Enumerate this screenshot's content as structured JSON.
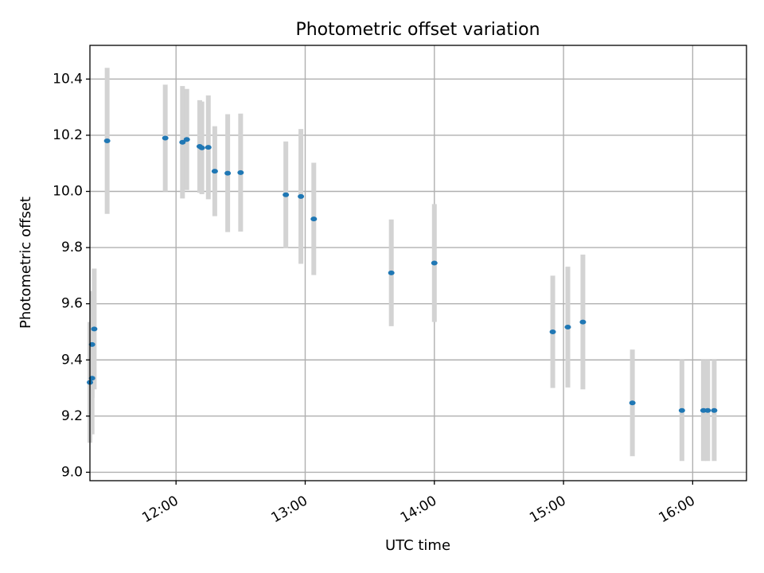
{
  "chart_data": {
    "type": "scatter",
    "title": "Photometric offset variation",
    "xlabel": "UTC time",
    "ylabel": "Photometric offset",
    "x_ticks": [
      "12:00",
      "13:00",
      "14:00",
      "15:00",
      "16:00"
    ],
    "y_ticks": [
      "9.0",
      "9.2",
      "9.4",
      "9.6",
      "9.8",
      "10.0",
      "10.2",
      "10.4"
    ],
    "xlim": [
      "11:20",
      "16:25"
    ],
    "ylim": [
      8.97,
      10.52
    ],
    "grid": true,
    "colors": {
      "point": "#1f77b4",
      "errorbar": "#d3d3d3"
    },
    "points": [
      {
        "x": "11:20",
        "y": 9.32,
        "yerr": 0.215
      },
      {
        "x": "11:21",
        "y": 9.335,
        "yerr": 0.2
      },
      {
        "x": "11:21",
        "y": 9.455,
        "yerr": 0.19
      },
      {
        "x": "11:22",
        "y": 9.51,
        "yerr": 0.215
      },
      {
        "x": "11:28",
        "y": 10.18,
        "yerr": 0.26
      },
      {
        "x": "11:55",
        "y": 10.19,
        "yerr": 0.19
      },
      {
        "x": "12:03",
        "y": 10.175,
        "yerr": 0.2
      },
      {
        "x": "12:05",
        "y": 10.185,
        "yerr": 0.18
      },
      {
        "x": "12:11",
        "y": 10.16,
        "yerr": 0.165
      },
      {
        "x": "12:12",
        "y": 10.155,
        "yerr": 0.165
      },
      {
        "x": "12:15",
        "y": 10.157,
        "yerr": 0.185
      },
      {
        "x": "12:18",
        "y": 10.072,
        "yerr": 0.16
      },
      {
        "x": "12:24",
        "y": 10.065,
        "yerr": 0.21
      },
      {
        "x": "12:30",
        "y": 10.067,
        "yerr": 0.21
      },
      {
        "x": "12:51",
        "y": 9.988,
        "yerr": 0.19
      },
      {
        "x": "12:58",
        "y": 9.982,
        "yerr": 0.24
      },
      {
        "x": "13:04",
        "y": 9.902,
        "yerr": 0.2
      },
      {
        "x": "13:40",
        "y": 9.71,
        "yerr": 0.19
      },
      {
        "x": "14:00",
        "y": 9.745,
        "yerr": 0.21
      },
      {
        "x": "14:55",
        "y": 9.5,
        "yerr": 0.2
      },
      {
        "x": "15:02",
        "y": 9.517,
        "yerr": 0.215
      },
      {
        "x": "15:09",
        "y": 9.535,
        "yerr": 0.24
      },
      {
        "x": "15:32",
        "y": 9.247,
        "yerr": 0.19
      },
      {
        "x": "15:55",
        "y": 9.22,
        "yerr": 0.18
      },
      {
        "x": "16:05",
        "y": 9.22,
        "yerr": 0.18
      },
      {
        "x": "16:07",
        "y": 9.22,
        "yerr": 0.18
      },
      {
        "x": "16:10",
        "y": 9.22,
        "yerr": 0.18
      }
    ]
  }
}
